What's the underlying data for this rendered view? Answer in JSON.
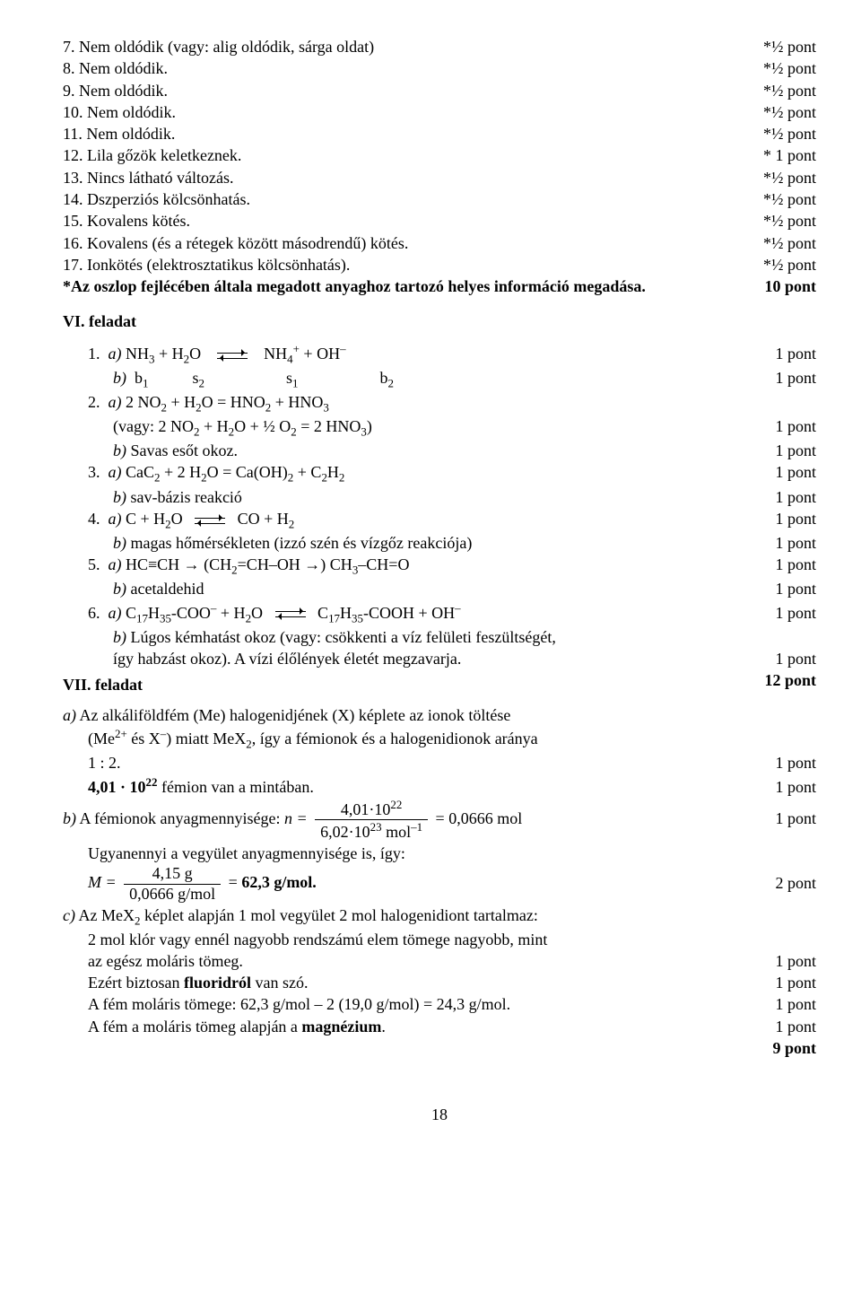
{
  "top_items": [
    {
      "n": "7.",
      "text": "Nem oldódik (vagy: alig oldódik, sárga oldat)",
      "pts": "*½ pont"
    },
    {
      "n": "8.",
      "text": "Nem oldódik.",
      "pts": "*½ pont"
    },
    {
      "n": "9.",
      "text": "Nem oldódik.",
      "pts": "*½ pont"
    },
    {
      "n": "10.",
      "text": "Nem oldódik.",
      "pts": "*½ pont"
    },
    {
      "n": "11.",
      "text": "Nem oldódik.",
      "pts": "*½ pont"
    },
    {
      "n": "12.",
      "text": "Lila gőzök keletkeznek.",
      "pts": "* 1 pont"
    },
    {
      "n": "13.",
      "text": "Nincs látható változás.",
      "pts": "*½ pont"
    },
    {
      "n": "14.",
      "text": "Dszperziós kölcsönhatás.",
      "pts": "*½ pont"
    },
    {
      "n": "15.",
      "text": "Kovalens kötés.",
      "pts": "*½ pont"
    },
    {
      "n": "16.",
      "text": "Kovalens (és a rétegek között másodrendű) kötés.",
      "pts": "*½ pont"
    },
    {
      "n": "17.",
      "text": "Ionkötés (elektrosztatikus kölcsönhatás).",
      "pts": "*½ pont"
    }
  ],
  "footnote": {
    "text": "*Az oszlop fejlécében általa megadott anyaghoz tartozó helyes információ megadása.",
    "pts": "10 pont"
  },
  "vi_title": "VI. feladat",
  "vi": {
    "i1": {
      "num": "1.",
      "a_label": "a)",
      "a_pre": "NH",
      "a_sub1": "3",
      "a_mid1": " + H",
      "a_sub2": "2",
      "a_mid2": "O",
      "a_rhs_pre": "NH",
      "a_rhs_sub": "4",
      "a_rhs_sup": "+",
      "a_rhs_mid": " + OH",
      "a_rhs_sup2": "–",
      "pts_a": "1 pont",
      "b_label": "b)",
      "b_b1": "b",
      "b_b1s": "1",
      "b_s2": "s",
      "b_s2s": "2",
      "b_s1": "s",
      "b_s1s": "1",
      "b_b2": "b",
      "b_b2s": "2",
      "pts_b": "1 pont"
    },
    "i2": {
      "num": "2.",
      "a_label": "a)",
      "a_line": "2 NO",
      "a_sub1": "2",
      "a_mid": " + H",
      "a_sub2": "2",
      "a_mid2": "O = HNO",
      "a_sub3": "2",
      "a_mid3": " + HNO",
      "a_sub4": "3",
      "paren": "(vagy: 2 NO",
      "p_sub1": "2",
      "p_mid": " + H",
      "p_sub2": "2",
      "p_mid2": "O + ½ O",
      "p_sub3": "2",
      "p_mid3": " = 2 HNO",
      "p_sub4": "3",
      "p_end": ")",
      "pts_a": "1 pont",
      "b_label": "b)",
      "b_text": "Savas esőt okoz.",
      "pts_b": "1 pont"
    },
    "i3": {
      "num": "3.",
      "a_label": "a)",
      "a_line": "CaC",
      "a_sub1": "2",
      "a_mid": " + 2 H",
      "a_sub2": "2",
      "a_mid2": "O = Ca(OH)",
      "a_sub3": "2",
      "a_mid3": " + C",
      "a_sub4": "2",
      "a_mid4": "H",
      "a_sub5": "2",
      "pts_a": "1 pont",
      "b_label": "b)",
      "b_text": "sav-bázis reakció",
      "pts_b": "1 pont"
    },
    "i4": {
      "num": "4.",
      "a_label": "a)",
      "a_pre": "C  +  H",
      "a_sub1": "2",
      "a_mid": "O",
      "a_rhs": "CO  +  H",
      "a_rhs_sub": "2",
      "pts_a": "1 pont",
      "b_label": "b)",
      "b_text": "magas hőmérsékleten (izzó szén és vízgőz reakciója)",
      "pts_b": "1 pont"
    },
    "i5": {
      "num": "5.",
      "a_label": "a)",
      "a_line": "HC≡CH → (CH",
      "a_sub1": "2",
      "a_mid": "=CH–OH →) CH",
      "a_sub2": "3",
      "a_mid2": "–CH=O",
      "pts_a": "1 pont",
      "b_label": "b)",
      "b_text": "acetaldehid",
      "pts_b": "1 pont"
    },
    "i6": {
      "num": "6.",
      "a_label": "a)",
      "a_pre": "C",
      "a_sub1": "17",
      "a_mid": "H",
      "a_sub2": "35",
      "a_mid2": "-COO",
      "a_sup1": "–",
      "a_mid3": " + H",
      "a_sub3": "2",
      "a_mid4": "O",
      "a_rhs": "C",
      "a_rsub1": "17",
      "a_rmid": "H",
      "a_rsub2": "35",
      "a_rmid2": "-COOH + OH",
      "a_rsup": "–",
      "pts_a": "1 pont",
      "b_label": "b)",
      "b_text1": "Lúgos kémhatást okoz (vagy: csökkenti a víz felületi feszültségét,",
      "b_text2": "így habzást okoz). A vízi élőlények életét megzavarja.",
      "pts_b": "1 pont"
    }
  },
  "vi_total": "12 pont",
  "vii_title": "VII. feladat",
  "vii": {
    "a_lines": [
      "Az alkáliföldfém (Me) halogenidjének (X) képlete az ionok töltése",
      "(Me   és X  ) miatt MeX  , így a fémionok és a halogenidionok aránya"
    ],
    "a_sup2p": "2+",
    "a_supm": "–",
    "a_sub2": "2",
    "a_line3": "1 : 2.",
    "a_pts1": "1 pont",
    "a_line4_pre": "4,01 · 10",
    "a_line4_sup": "22",
    "a_line4_post": " fémion van a mintában.",
    "a_pts2": "1 pont",
    "b_label": "b)",
    "b_text": "A fémionok anyagmennyisége: ",
    "b_n": "n =",
    "b_frac_num_pre": "4,01·10",
    "b_frac_num_sup": "22",
    "b_frac_den_pre": "6,02·10",
    "b_frac_den_sup": "23",
    "b_frac_den_post": " mol",
    "b_frac_den_sup2": "–1",
    "b_eq": "= 0,0666 mol",
    "b_pts": "1 pont",
    "b2_line": "Ugyanennyi a vegyület anyagmennyisége is, így:",
    "m_label": "M =",
    "m_num": "4,15 g",
    "m_den": "0,0666 g/mol",
    "m_eq": " = ",
    "m_bold": "62,3 g/mol.",
    "m_pts": "2 pont",
    "c_label": "c)",
    "c_pre": "Az MeX",
    "c_sub": "2",
    "c_post": " képlet alapján 1 mol vegyület 2 mol halogenidiont tartalmaz:",
    "c_l1": "2 mol klór vagy ennél nagyobb rendszámú elem tömege nagyobb, mint",
    "c_l2": "az egész moláris tömeg.",
    "c_pts1": "1 pont",
    "c_l3_pre": "Ezért biztosan ",
    "c_l3_bold": "fluoridról",
    "c_l3_post": " van szó.",
    "c_pts2": "1 pont",
    "c_l4": "A fém moláris tömege: 62,3 g/mol – 2 (19,0 g/mol) = 24,3 g/mol.",
    "c_pts3": "1 pont",
    "c_l5_pre": "A fém a moláris tömeg alapján a ",
    "c_l5_bold": "magnézium",
    "c_l5_post": ".",
    "c_pts4": "1 pont",
    "total": "9 pont"
  },
  "page_number": "18"
}
